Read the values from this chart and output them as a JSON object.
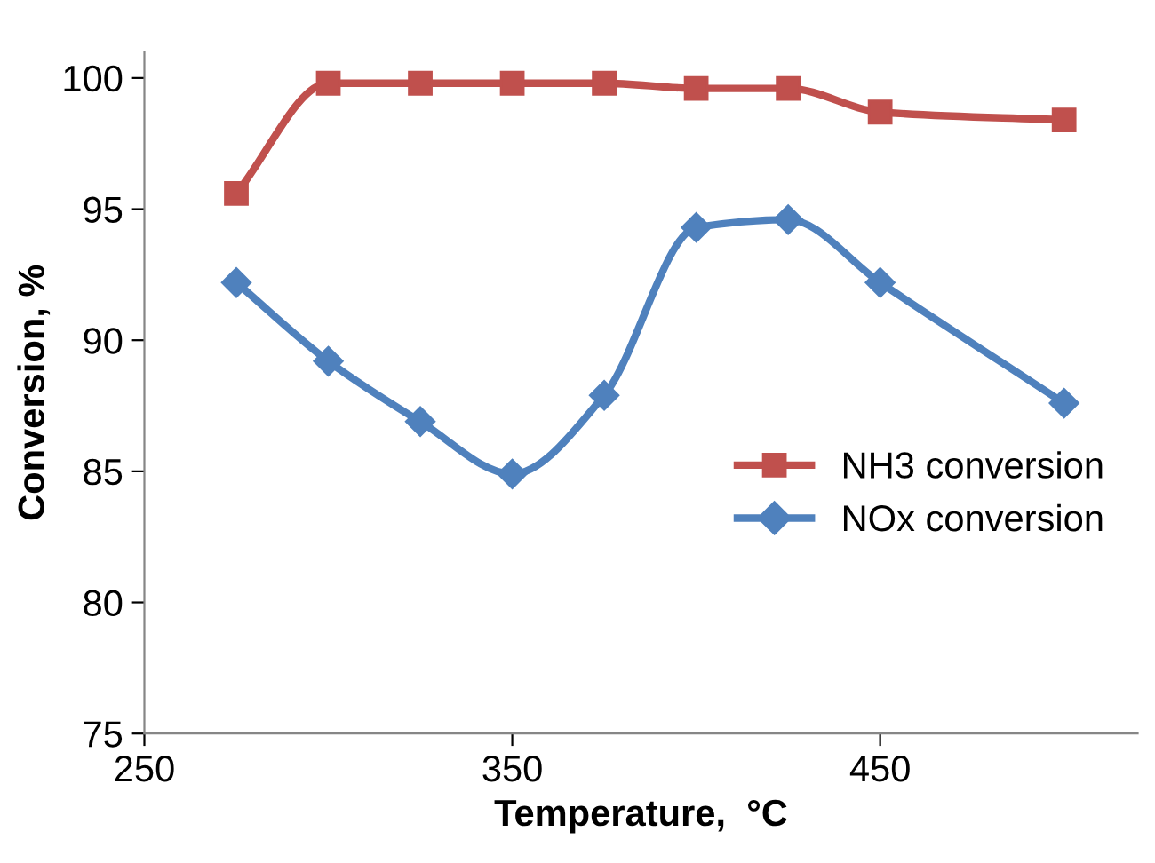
{
  "chart_data": {
    "type": "line",
    "xlabel": "Temperature,  °C",
    "ylabel": "Conversion, %",
    "x": [
      275,
      300,
      325,
      350,
      375,
      400,
      425,
      450,
      500
    ],
    "series": [
      {
        "name": "NH3 conversion",
        "color": "#c0504d",
        "marker": "square",
        "values": [
          95.6,
          99.8,
          99.8,
          99.8,
          99.8,
          99.6,
          99.6,
          98.7,
          98.4
        ]
      },
      {
        "name": "NOx conversion",
        "color": "#4f81bd",
        "marker": "diamond",
        "values": [
          92.2,
          89.2,
          86.9,
          84.9,
          87.9,
          94.3,
          94.6,
          92.2,
          87.6
        ]
      }
    ],
    "xlim": [
      250,
      520
    ],
    "xticks": [
      250,
      350,
      450
    ],
    "ylim": [
      75,
      101
    ],
    "yticks": [
      75,
      80,
      85,
      90,
      95,
      100
    ],
    "grid": false,
    "legend": "right",
    "line_style": "solid"
  }
}
